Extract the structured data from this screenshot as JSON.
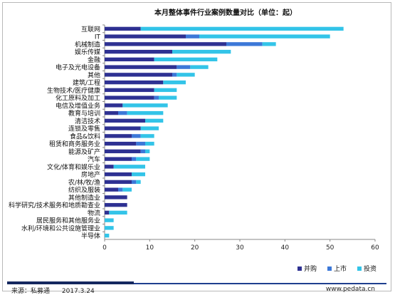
{
  "chart_data": {
    "type": "bar",
    "orientation": "horizontal",
    "stacked": true,
    "title": "本月整体事件行业案例数量对比（单位：起）",
    "categories": [
      "互联网",
      "IT",
      "机械制造",
      "娱乐传媒",
      "金融",
      "电子及光电设备",
      "其他",
      "建筑/工程",
      "生物技术/医疗健康",
      "化工原料及加工",
      "电信及增值业务",
      "教育与培训",
      "清洁技术",
      "连锁及零售",
      "食品&饮料",
      "租赁和商务服务业",
      "能源及矿产",
      "汽车",
      "文化/体育和娱乐业",
      "房地产",
      "农/林/牧/渔",
      "纺织及服装",
      "其他制造业",
      "科学研究/技术服务和地质勘查业",
      "物流",
      "居民服务和其他服务业",
      "水利/环境和公共设施管理业",
      "半导体"
    ],
    "series": [
      {
        "name": "并购",
        "color": "#2e3192",
        "values": [
          8,
          18,
          27,
          15,
          11,
          16,
          15,
          13,
          11,
          11,
          4,
          3,
          9,
          8,
          6,
          7,
          8,
          6,
          2,
          6,
          6,
          3,
          5,
          5,
          1,
          0,
          0,
          0
        ]
      },
      {
        "name": "上市",
        "color": "#3c78d8",
        "values": [
          0,
          3,
          8,
          0,
          0,
          3,
          1,
          0,
          0,
          1,
          0,
          2,
          0,
          0,
          2,
          2,
          1,
          1,
          0,
          0,
          1,
          1,
          0,
          0,
          0,
          0,
          0,
          0
        ]
      },
      {
        "name": "投资",
        "color": "#33c4e8",
        "values": [
          45,
          29,
          3,
          13,
          14,
          4,
          4,
          5,
          5,
          4,
          10,
          8,
          4,
          4,
          3,
          2,
          1,
          3,
          7,
          3,
          1,
          2,
          0,
          0,
          4,
          2,
          2,
          1
        ]
      }
    ],
    "xlim": [
      0,
      60
    ],
    "xticks": [
      0,
      10,
      20,
      30,
      40,
      50,
      60
    ],
    "grid": false,
    "legend_position": "bottom-right"
  },
  "footer": {
    "source": "来源：私募通",
    "date": "2017.3.24",
    "website": "www.pedata.cn"
  }
}
